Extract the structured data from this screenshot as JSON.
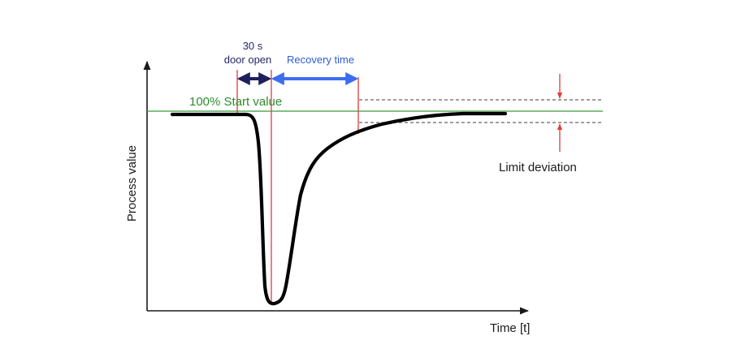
{
  "diagram": {
    "y_axis_label": "Process value",
    "x_axis_label": "Time [t]",
    "start_value_label": "100% Start value",
    "door_open_line1": "30 s",
    "door_open_line2": "door open",
    "recovery_label": "Recovery time",
    "limit_label": "Limit deviation"
  },
  "colors": {
    "curve": "#000000",
    "start_line": "#3a9a3a",
    "start_text": "#2e8b2e",
    "markers": "#e03c3c",
    "door_arrow": "#1f1f5f",
    "recovery_arrow": "#3a6df0",
    "limit_lines": "#666666"
  }
}
